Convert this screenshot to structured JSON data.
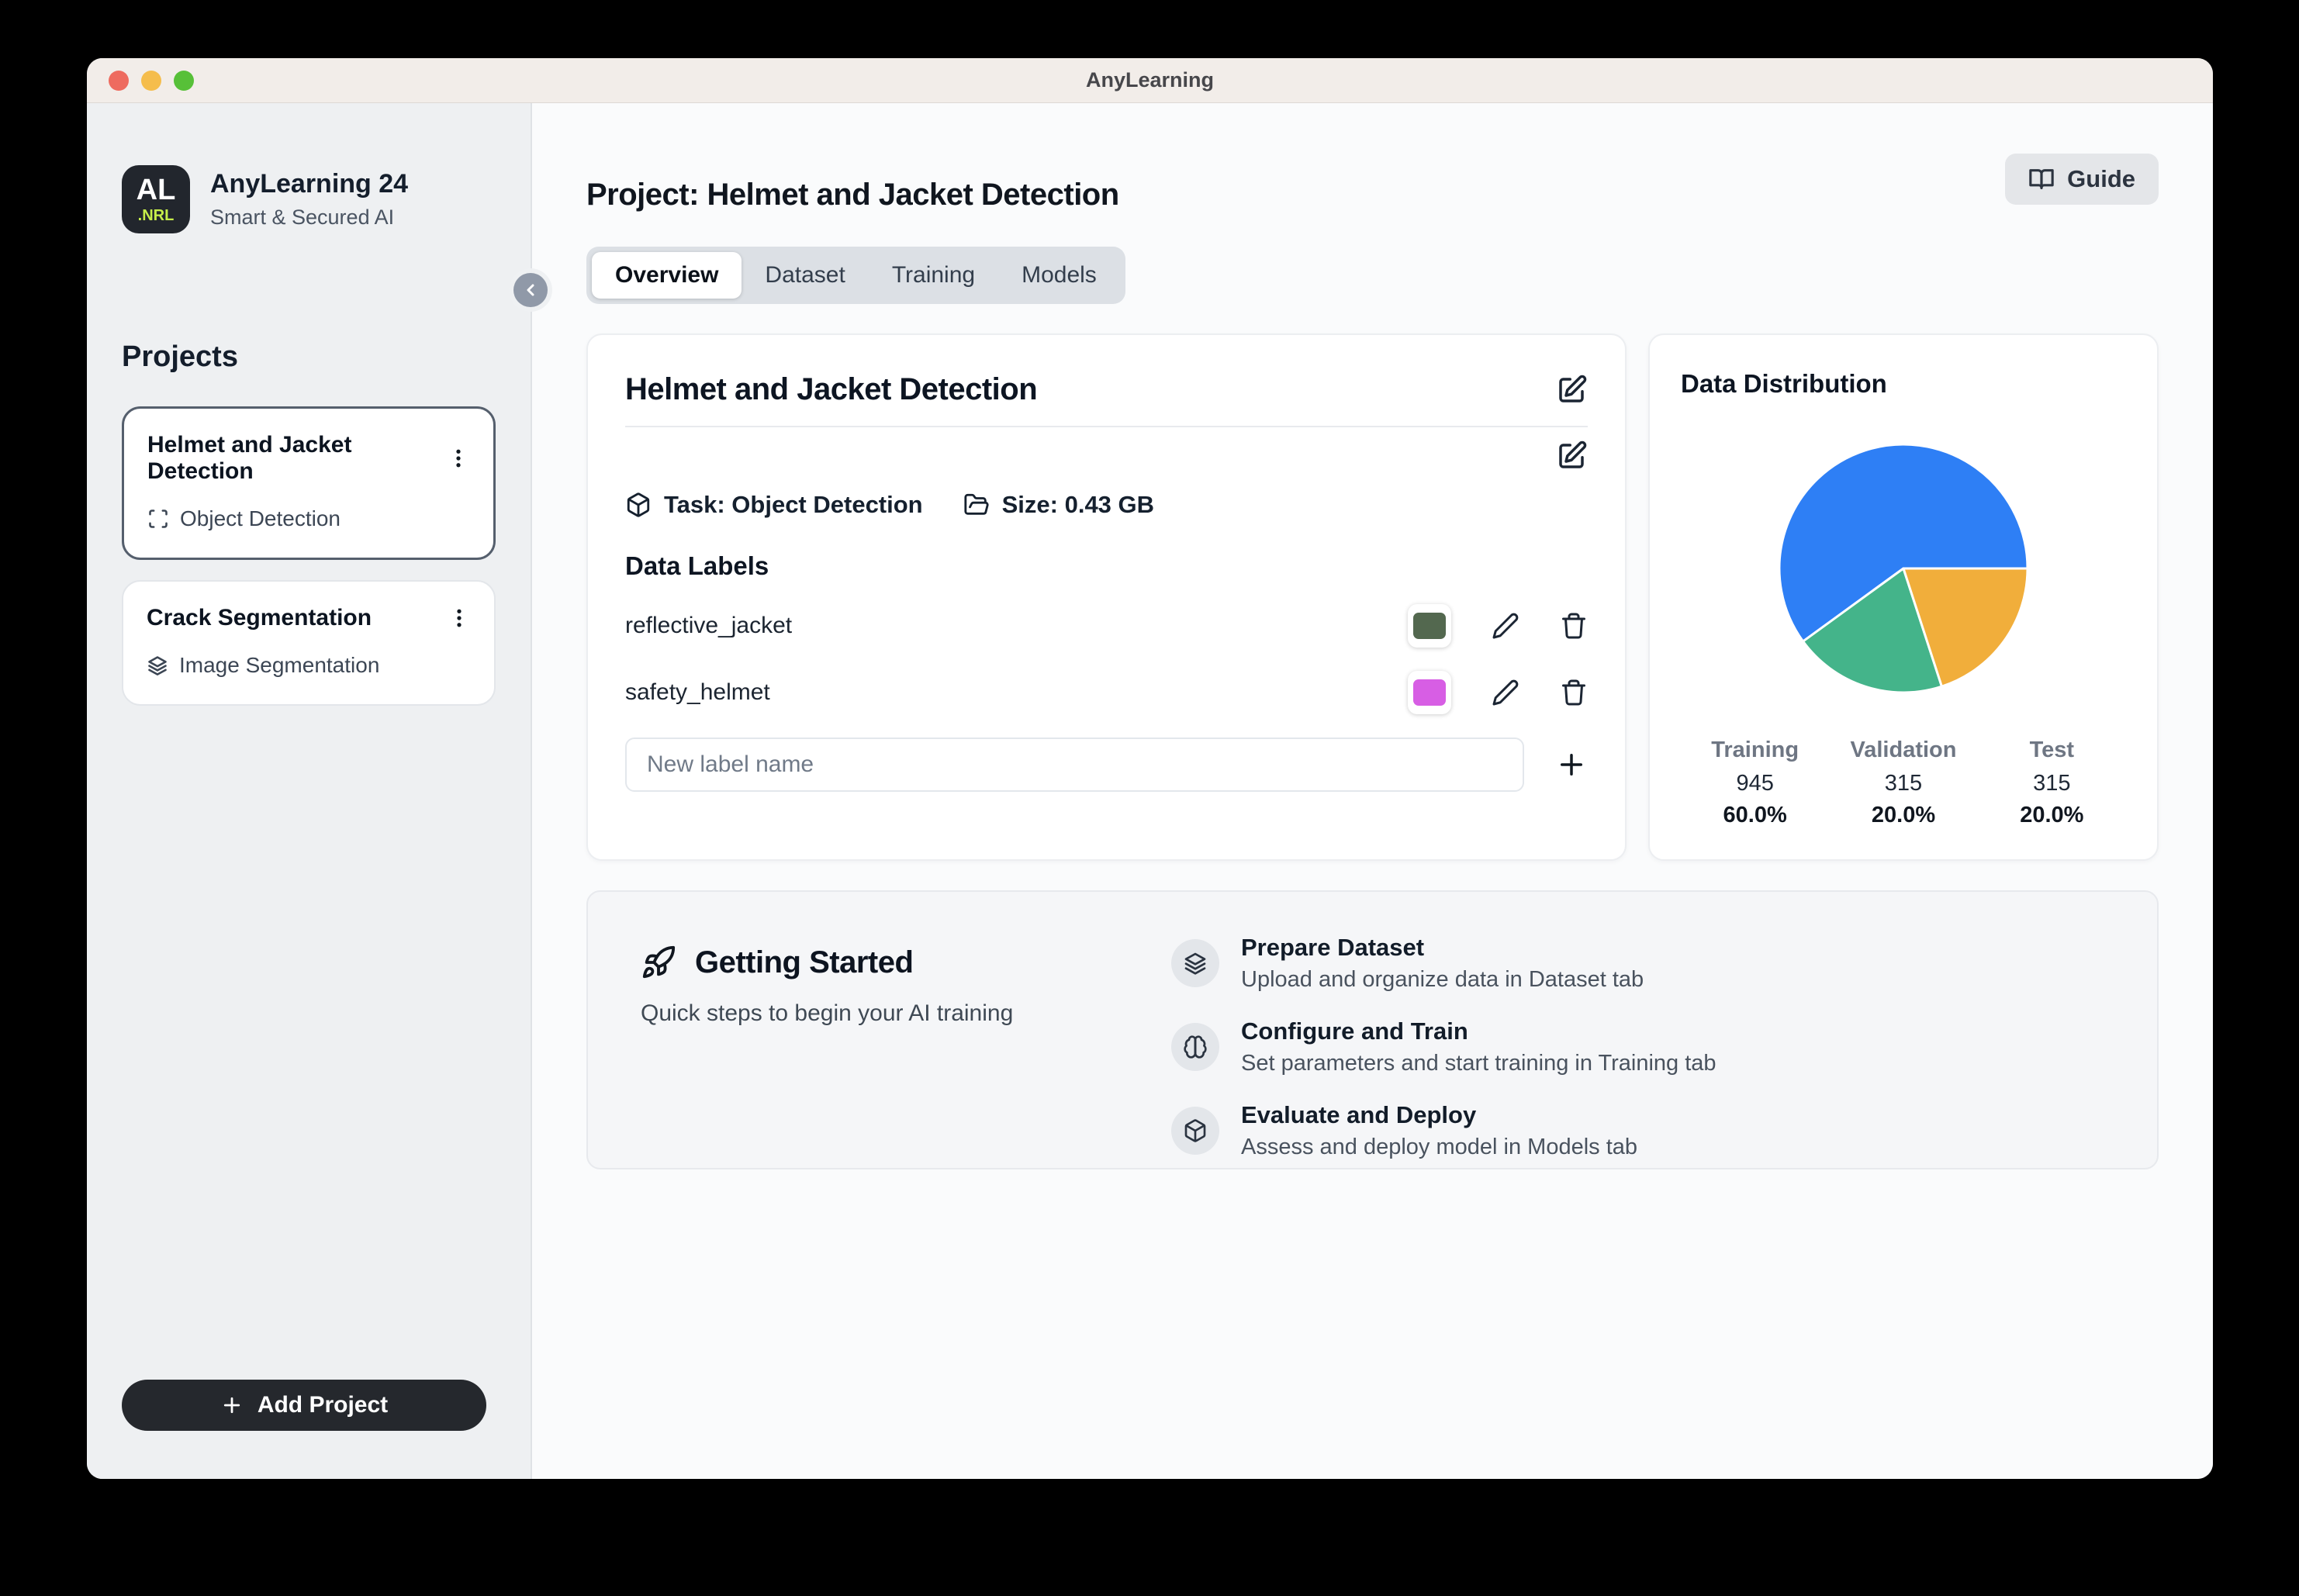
{
  "window": {
    "title": "AnyLearning"
  },
  "sidebar": {
    "logo": {
      "line1": "AL",
      "line2": ".NRL"
    },
    "app_name": "AnyLearning 24",
    "app_subtitle": "Smart & Secured AI",
    "projects_heading": "Projects",
    "projects": [
      {
        "name": "Helmet and Jacket Detection",
        "type": "Object Detection",
        "icon": "scan-frame-icon",
        "selected": true
      },
      {
        "name": "Crack Segmentation",
        "type": "Image Segmentation",
        "icon": "layers-icon",
        "selected": false
      }
    ],
    "add_project_label": "Add Project"
  },
  "header": {
    "page_title": "Project: Helmet and Jacket Detection",
    "guide_label": "Guide",
    "guide_icon": "book-open-icon"
  },
  "tabs": [
    {
      "label": "Overview",
      "active": true
    },
    {
      "label": "Dataset",
      "active": false
    },
    {
      "label": "Training",
      "active": false
    },
    {
      "label": "Models",
      "active": false
    }
  ],
  "project_card": {
    "title": "Helmet and Jacket Detection",
    "task_label": "Task: Object Detection",
    "task_icon": "cube-icon",
    "size_label": "Size: 0.43 GB",
    "size_icon": "folder-open-icon",
    "data_labels_heading": "Data Labels",
    "labels": [
      {
        "name": "reflective_jacket",
        "color": "#53684f"
      },
      {
        "name": "safety_helmet",
        "color": "#d75ee4"
      }
    ],
    "new_label_placeholder": "New label name"
  },
  "distribution_card": {
    "title": "Data Distribution",
    "stats": [
      {
        "label": "Training",
        "value": "945",
        "percent": "60.0%"
      },
      {
        "label": "Validation",
        "value": "315",
        "percent": "20.0%"
      },
      {
        "label": "Test",
        "value": "315",
        "percent": "20.0%"
      }
    ]
  },
  "chart_data": {
    "type": "pie",
    "title": "Data Distribution",
    "labels": [
      "Training",
      "Validation",
      "Test"
    ],
    "values": [
      945,
      315,
      315
    ],
    "percentages": [
      60.0,
      20.0,
      20.0
    ],
    "colors": [
      "#2e7ff5",
      "#44b48a",
      "#f1ae3b"
    ],
    "start_angle_deg": 0,
    "direction": "counterclockwise",
    "legend": "none"
  },
  "getting_started": {
    "title": "Getting Started",
    "title_icon": "rocket-icon",
    "subtitle": "Quick steps to begin your AI training",
    "steps": [
      {
        "title": "Prepare Dataset",
        "description": "Upload and organize data in Dataset tab",
        "icon": "layers-icon"
      },
      {
        "title": "Configure and Train",
        "description": "Set parameters and start training in Training tab",
        "icon": "brain-icon"
      },
      {
        "title": "Evaluate and Deploy",
        "description": "Assess and deploy model in Models tab",
        "icon": "cube-icon"
      }
    ]
  }
}
